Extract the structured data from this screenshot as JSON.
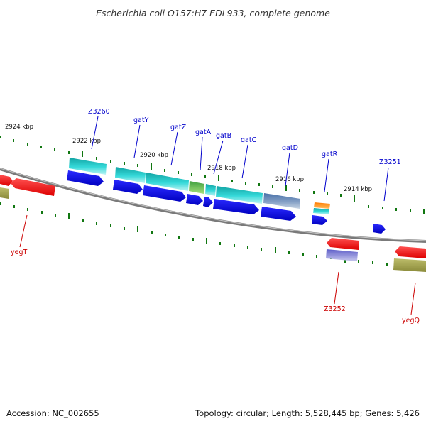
{
  "title": "Escherichia coli O157:H7 EDL933, complete genome",
  "footer": {
    "accession": "Accession: NC_002655",
    "summary": "Topology: circular; Length: 5,528,445 bp; Genes: 5,426"
  },
  "coordinate_labels": [
    {
      "name": "kbp-2924",
      "text": "2924 kbp"
    },
    {
      "name": "kbp-2922",
      "text": "2922 kbp"
    },
    {
      "name": "kbp-2920",
      "text": "2920 kbp"
    },
    {
      "name": "kbp-2918",
      "text": "2918 kbp"
    },
    {
      "name": "kbp-2916",
      "text": "2916 kbp"
    },
    {
      "name": "kbp-2914",
      "text": "2914 kbp"
    }
  ],
  "genes": [
    {
      "name": "z3260",
      "label": "Z3260",
      "strand": "forward"
    },
    {
      "name": "gaty",
      "label": "gatY",
      "strand": "forward"
    },
    {
      "name": "gatz",
      "label": "gatZ",
      "strand": "forward"
    },
    {
      "name": "gata",
      "label": "gatA",
      "strand": "forward"
    },
    {
      "name": "gatb",
      "label": "gatB",
      "strand": "forward"
    },
    {
      "name": "gatc",
      "label": "gatC",
      "strand": "forward"
    },
    {
      "name": "gatd",
      "label": "gatD",
      "strand": "forward"
    },
    {
      "name": "gatr",
      "label": "gatR",
      "strand": "forward"
    },
    {
      "name": "z3251",
      "label": "Z3251",
      "strand": "forward"
    },
    {
      "name": "yegt",
      "label": "yegT",
      "strand": "reverse"
    },
    {
      "name": "z3252",
      "label": "Z3252",
      "strand": "reverse"
    },
    {
      "name": "yegq",
      "label": "yegQ",
      "strand": "reverse"
    }
  ],
  "colors": {
    "forward_label": "#0000cc",
    "reverse_label": "#cc0000",
    "forward_gene": "#1010e0",
    "reverse_gene": "#ee1111",
    "backbone": "#7a7a7a",
    "tick": "#117711"
  }
}
